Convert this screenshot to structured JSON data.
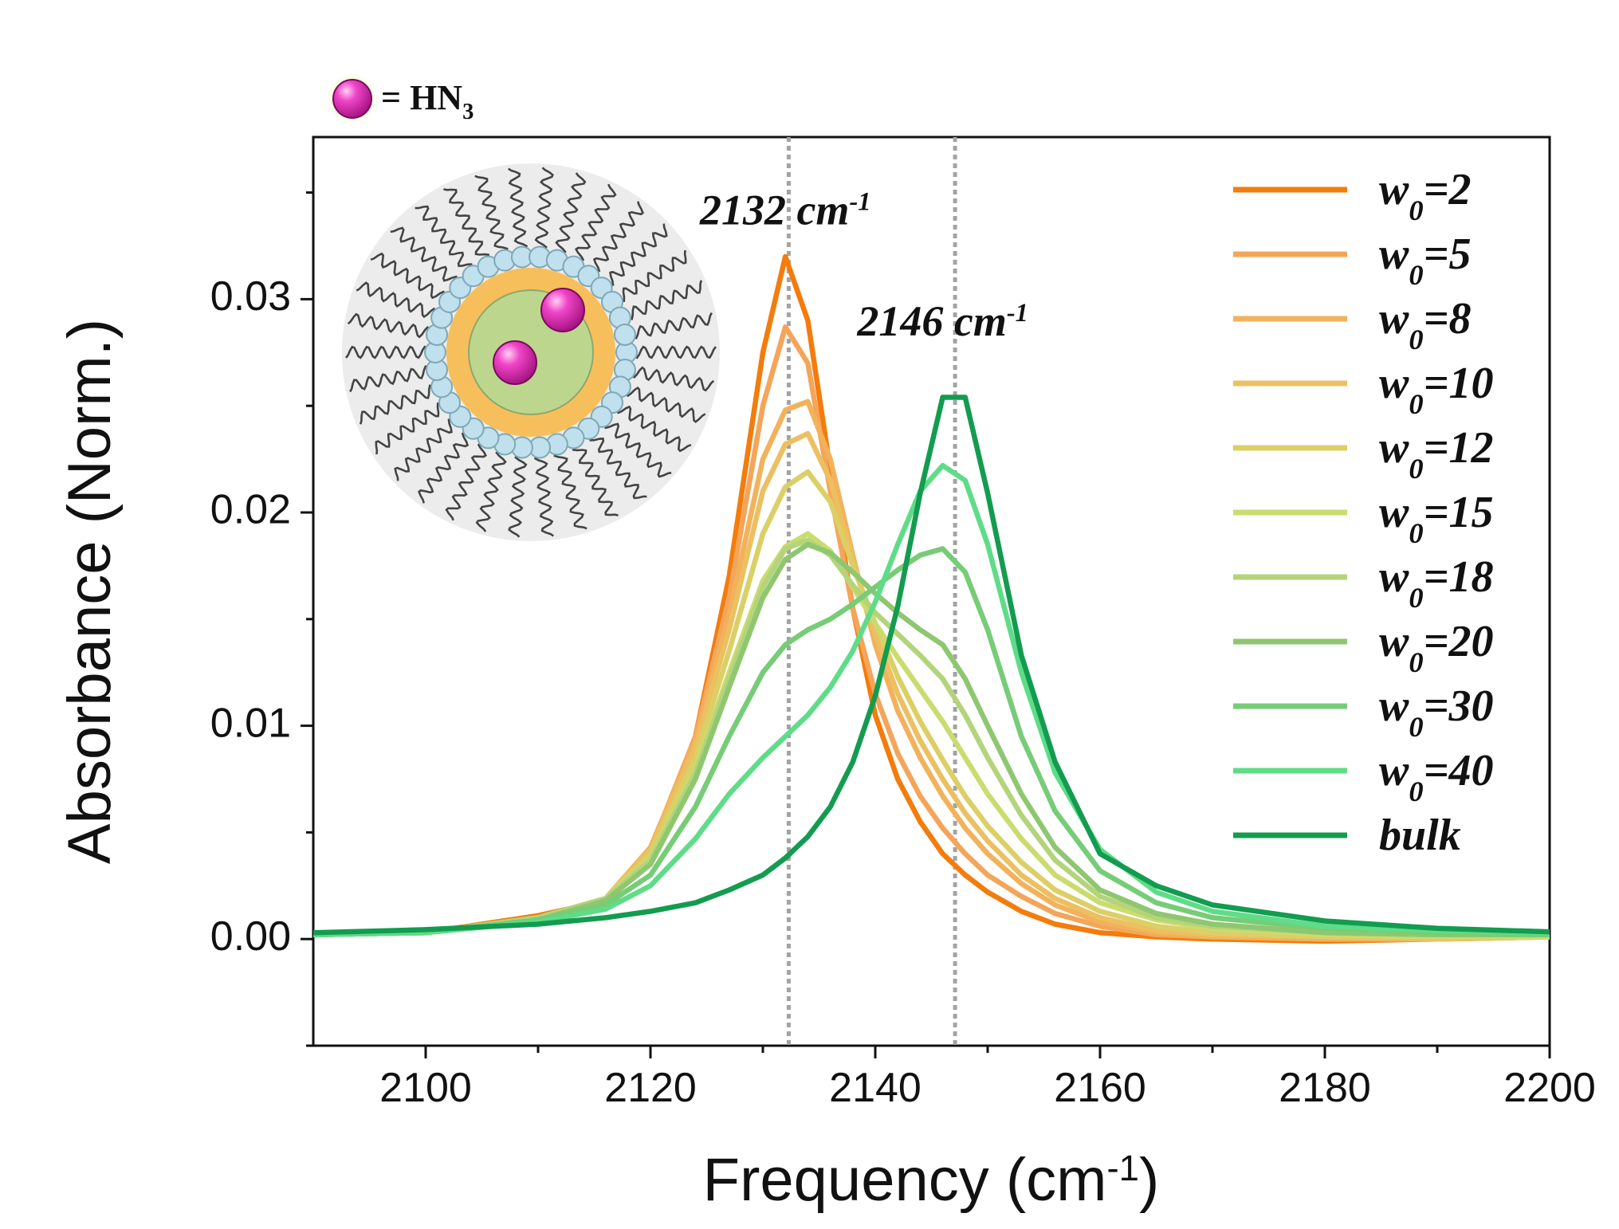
{
  "chart_data": {
    "type": "line",
    "x_label": "Frequency (cm-1)",
    "y_label": "Absorbance (Norm.)",
    "inset_legend": "= HN3",
    "annotations": [
      {
        "text": "2132 cm-1",
        "x": 2132,
        "y": 0.0335
      },
      {
        "text": "2146 cm-1",
        "x": 2146,
        "y": 0.0283
      }
    ],
    "vlines": [
      2132.3,
      2147.1
    ],
    "xlim": [
      2090,
      2200
    ],
    "xticks": [
      2100,
      2120,
      2140,
      2160,
      2180,
      2200
    ],
    "xminorticks": [
      2110,
      2130,
      2150,
      2170,
      2190
    ],
    "ylim": [
      -0.005,
      0.0376
    ],
    "yticks": [
      {
        "value": 0,
        "label": "0.00"
      },
      {
        "value": 0.01,
        "label": "0.01"
      },
      {
        "value": 0.02,
        "label": "0.02"
      },
      {
        "value": 0.03,
        "label": "0.03"
      }
    ],
    "yminorticks": [
      -0.005,
      0.005,
      0.015,
      0.025,
      0.035
    ],
    "legend": "upper right",
    "x": [
      2090,
      2100,
      2110,
      2116,
      2120,
      2124,
      2127,
      2130,
      2132,
      2134,
      2136,
      2138,
      2140,
      2142,
      2144,
      2146,
      2148,
      2150,
      2153,
      2156,
      2160,
      2165,
      2170,
      2180,
      2190,
      2200
    ],
    "series": [
      {
        "name": "w0=2",
        "color": "#f47c0c",
        "values": [
          0.0002,
          0.0003,
          0.0011,
          0.0018,
          0.004,
          0.0095,
          0.017,
          0.0275,
          0.032,
          0.029,
          0.022,
          0.0155,
          0.0105,
          0.0075,
          0.0055,
          0.004,
          0.003,
          0.0022,
          0.0013,
          0.0007,
          0.0003,
          0.0001,
          0,
          -0.0001,
          0,
          0.0002
        ]
      },
      {
        "name": "w0=5",
        "color": "#f4a55a",
        "values": [
          0.0002,
          0.0003,
          0.001,
          0.0018,
          0.0042,
          0.0095,
          0.016,
          0.025,
          0.0287,
          0.027,
          0.021,
          0.0155,
          0.0115,
          0.0087,
          0.0067,
          0.0052,
          0.004,
          0.003,
          0.002,
          0.0012,
          0.0006,
          0.0002,
          0.0001,
          0,
          0,
          0.0001
        ]
      },
      {
        "name": "w0=8",
        "color": "#f2b25c",
        "values": [
          0.0002,
          0.0003,
          0.001,
          0.0019,
          0.0043,
          0.0093,
          0.0152,
          0.0225,
          0.0248,
          0.0252,
          0.0225,
          0.018,
          0.0138,
          0.0107,
          0.0085,
          0.0067,
          0.0052,
          0.004,
          0.0026,
          0.0016,
          0.0008,
          0.0003,
          0.0001,
          0,
          0,
          0.0001
        ]
      },
      {
        "name": "w0=10",
        "color": "#ecc061",
        "values": [
          0.0002,
          0.0003,
          0.001,
          0.0019,
          0.0042,
          0.009,
          0.0145,
          0.021,
          0.0232,
          0.0237,
          0.0215,
          0.0178,
          0.0143,
          0.0115,
          0.0093,
          0.0075,
          0.0059,
          0.0046,
          0.003,
          0.0019,
          0.001,
          0.0004,
          0.0002,
          0.0001,
          0,
          0.0001
        ]
      },
      {
        "name": "w0=12",
        "color": "#dccf66",
        "values": [
          0.0002,
          0.0003,
          0.001,
          0.0019,
          0.004,
          0.0085,
          0.0135,
          0.019,
          0.0212,
          0.0219,
          0.0205,
          0.0175,
          0.0148,
          0.0123,
          0.0102,
          0.0084,
          0.0067,
          0.0053,
          0.0036,
          0.0023,
          0.0013,
          0.0006,
          0.0003,
          0.0001,
          0.0001,
          0.0001
        ]
      },
      {
        "name": "w0=15",
        "color": "#cadc6e",
        "values": [
          0.0002,
          0.0003,
          0.001,
          0.0019,
          0.0038,
          0.008,
          0.0125,
          0.0168,
          0.0184,
          0.019,
          0.0182,
          0.0165,
          0.0148,
          0.0132,
          0.0117,
          0.0102,
          0.0085,
          0.0068,
          0.0047,
          0.003,
          0.0017,
          0.0009,
          0.0005,
          0.0002,
          0.0001,
          0.0001
        ]
      },
      {
        "name": "w0=18",
        "color": "#b4d47b",
        "values": [
          0.0002,
          0.0003,
          0.001,
          0.0019,
          0.0037,
          0.0078,
          0.0122,
          0.0165,
          0.0183,
          0.0187,
          0.018,
          0.0166,
          0.0153,
          0.0143,
          0.0133,
          0.0122,
          0.0105,
          0.0085,
          0.0058,
          0.0037,
          0.002,
          0.001,
          0.0006,
          0.0003,
          0.0002,
          0.0002
        ]
      },
      {
        "name": "w0=20",
        "color": "#8fc771",
        "values": [
          0.0002,
          0.0003,
          0.0009,
          0.0018,
          0.0035,
          0.0075,
          0.0118,
          0.016,
          0.0178,
          0.0185,
          0.0181,
          0.0172,
          0.0162,
          0.0153,
          0.0145,
          0.0138,
          0.0122,
          0.01,
          0.0068,
          0.0043,
          0.0023,
          0.0012,
          0.0007,
          0.0003,
          0.0002,
          0.0002
        ]
      },
      {
        "name": "w0=30",
        "color": "#77cc77",
        "values": [
          0.0002,
          0.0003,
          0.0009,
          0.0016,
          0.003,
          0.0062,
          0.0095,
          0.0125,
          0.0138,
          0.0145,
          0.015,
          0.0157,
          0.0165,
          0.0173,
          0.018,
          0.0183,
          0.0172,
          0.0145,
          0.0095,
          0.006,
          0.0032,
          0.0017,
          0.001,
          0.0005,
          0.0003,
          0.0002
        ]
      },
      {
        "name": "w0=40",
        "color": "#5fdc88",
        "values": [
          0.0002,
          0.0003,
          0.0008,
          0.0014,
          0.0025,
          0.0047,
          0.0068,
          0.0085,
          0.0095,
          0.0105,
          0.0118,
          0.0135,
          0.0158,
          0.0185,
          0.021,
          0.0222,
          0.0215,
          0.0185,
          0.0125,
          0.0078,
          0.0042,
          0.0022,
          0.0013,
          0.0006,
          0.0004,
          0.0003
        ]
      },
      {
        "name": "bulk",
        "color": "#139c50",
        "values": [
          0.0003,
          0.00044,
          0.0007,
          0.001,
          0.0013,
          0.0017,
          0.0023,
          0.003,
          0.0038,
          0.0048,
          0.0062,
          0.0083,
          0.0114,
          0.0156,
          0.0209,
          0.0254,
          0.0254,
          0.0209,
          0.0133,
          0.0083,
          0.004,
          0.0025,
          0.0016,
          0.00085,
          0.0005,
          0.00034
        ]
      }
    ]
  }
}
